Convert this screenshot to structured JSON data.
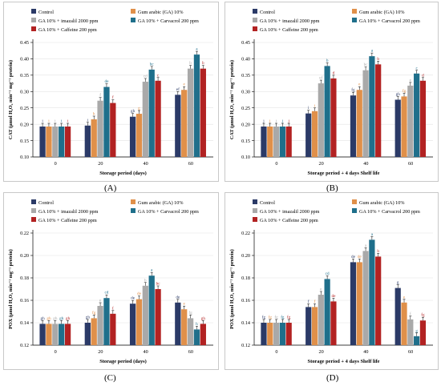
{
  "legend": [
    "Control",
    "Gum arabic (GA) 10%",
    "GA 10% + imazalil 2000 ppm",
    "GA 10% + Carvacrol 200 ppm",
    "GA 10% + Caffeine 200 ppm"
  ],
  "series_colors": [
    "#2b3a67",
    "#e0904a",
    "#a9a9a9",
    "#1f6f8b",
    "#b22222"
  ],
  "panel_labels": [
    "(A)",
    "(B)",
    "(C)",
    "(D)"
  ],
  "chart_data": [
    {
      "type": "bar",
      "panel": "(A)",
      "categories": [
        "0",
        "20",
        "40",
        "60"
      ],
      "xlabel": "Storage period  (days)",
      "ylabel": "CAT (µmol H₂O₂ min⁻¹ mg⁻¹ protein)",
      "ylim": [
        0.1,
        0.45
      ],
      "yticks": [
        "0.10",
        "0.15",
        "0.20",
        "0.25",
        "0.30",
        "0.35",
        "0.40",
        "0.45"
      ],
      "legend_position": "top-left",
      "series": [
        {
          "name": "Control",
          "values": [
            0.193,
            0.196,
            0.223,
            0.29
          ],
          "letters": [
            "i",
            "i",
            "gh",
            "ef"
          ]
        },
        {
          "name": "Gum arabic (GA) 10%",
          "values": [
            0.193,
            0.215,
            0.232,
            0.305
          ],
          "letters": [
            "i",
            "h",
            "g",
            "e"
          ]
        },
        {
          "name": "GA 10% + imazalil 2000 ppm",
          "values": [
            0.193,
            0.272,
            0.33,
            0.37
          ],
          "letters": [
            "i",
            "f",
            "cd",
            "b"
          ]
        },
        {
          "name": "GA 10% + Carvacrol 200 ppm",
          "values": [
            0.193,
            0.314,
            0.367,
            0.413
          ],
          "letters": [
            "i",
            "de",
            "bc",
            "a"
          ]
        },
        {
          "name": "GA 10% + Caffeine 200 ppm",
          "values": [
            0.193,
            0.265,
            0.333,
            0.37
          ],
          "letters": [
            "i",
            "f",
            "c",
            "b"
          ]
        }
      ]
    },
    {
      "type": "bar",
      "panel": "(B)",
      "categories": [
        "0",
        "20",
        "40",
        "60"
      ],
      "xlabel": "Storage period + 4 days Shelf life",
      "ylabel": "CAT (µmol H₂O₂ min⁻¹ mg⁻¹ protein)",
      "ylim": [
        0.1,
        0.45
      ],
      "yticks": [
        "0.10",
        "0.15",
        "0.20",
        "0.25",
        "0.30",
        "0.35",
        "0.40",
        "0.45"
      ],
      "legend_position": "top-left",
      "series": [
        {
          "name": "Control",
          "values": [
            0.193,
            0.233,
            0.288,
            0.275
          ],
          "letters": [
            "j",
            "i",
            "fg",
            "gh"
          ]
        },
        {
          "name": "Gum arabic (GA) 10%",
          "values": [
            0.193,
            0.24,
            0.305,
            0.285
          ],
          "letters": [
            "j",
            "i",
            "e",
            "fg"
          ]
        },
        {
          "name": "GA 10% + imazalil 2000 ppm",
          "values": [
            0.193,
            0.325,
            0.365,
            0.318
          ],
          "letters": [
            "j",
            "ef",
            "bc",
            "e"
          ]
        },
        {
          "name": "GA 10% + Carvacrol 200 ppm",
          "values": [
            0.193,
            0.378,
            0.408,
            0.355
          ],
          "letters": [
            "j",
            "b",
            "a",
            "c"
          ]
        },
        {
          "name": "GA 10% + Caffeine 200 ppm",
          "values": [
            0.193,
            0.34,
            0.383,
            0.333
          ],
          "letters": [
            "j",
            "d",
            "b",
            "d"
          ]
        }
      ]
    },
    {
      "type": "bar",
      "panel": "(C)",
      "categories": [
        "0",
        "20",
        "40",
        "60"
      ],
      "xlabel": "Storage period  (days)",
      "ylabel": "POX (µmol H₂O₂ min⁻¹ mg⁻¹ protein)",
      "ylim": [
        0.12,
        0.22
      ],
      "yticks": [
        "0.12",
        "0.14",
        "0.16",
        "0.18",
        "0.20",
        "0.22"
      ],
      "legend_position": "top-left",
      "series": [
        {
          "name": "Control",
          "values": [
            0.139,
            0.14,
            0.157,
            0.158
          ],
          "letters": [
            "gh",
            "gh",
            "de",
            "de"
          ]
        },
        {
          "name": "Gum arabic (GA) 10%",
          "values": [
            0.139,
            0.144,
            0.161,
            0.152
          ],
          "letters": [
            "gh",
            "fg",
            "de",
            "e"
          ]
        },
        {
          "name": "GA 10% + imazalil 2000 ppm",
          "values": [
            0.139,
            0.155,
            0.173,
            0.144
          ],
          "letters": [
            "gh",
            "e",
            "b",
            "fg"
          ]
        },
        {
          "name": "GA 10% + Carvacrol 200 ppm",
          "values": [
            0.139,
            0.162,
            0.182,
            0.134
          ],
          "letters": [
            "gh",
            "cd",
            "a",
            "h"
          ]
        },
        {
          "name": "GA 10% + Caffeine 200 ppm",
          "values": [
            0.139,
            0.148,
            0.17,
            0.139
          ],
          "letters": [
            "gh",
            "f",
            "bc",
            "gh"
          ]
        }
      ]
    },
    {
      "type": "bar",
      "panel": "(D)",
      "categories": [
        "0",
        "20",
        "40",
        "60"
      ],
      "xlabel": "Storage period + 4 days Shelf life",
      "ylabel": "POX (µmol H₂O₂ min⁻¹ mg⁻¹ protein)",
      "ylim": [
        0.12,
        0.22
      ],
      "yticks": [
        "0.12",
        "0.14",
        "0.16",
        "0.18",
        "0.20",
        "0.22"
      ],
      "legend_position": "top-left",
      "series": [
        {
          "name": "Control",
          "values": [
            0.14,
            0.154,
            0.194,
            0.171
          ],
          "letters": [
            "fg",
            "f",
            "de",
            "g"
          ]
        },
        {
          "name": "Gum arabic (GA) 10%",
          "values": [
            0.14,
            0.154,
            0.194,
            0.158
          ],
          "letters": [
            "fg",
            "f",
            "de",
            "e"
          ]
        },
        {
          "name": "GA 10% + imazalil 2000 ppm",
          "values": [
            0.14,
            0.165,
            0.204,
            0.143
          ],
          "letters": [
            "fg",
            "e",
            "a",
            "f"
          ]
        },
        {
          "name": "GA 10% + Carvacrol 200 ppm",
          "values": [
            0.14,
            0.179,
            0.214,
            0.128
          ],
          "letters": [
            "fg",
            "cd",
            "a",
            "g"
          ]
        },
        {
          "name": "GA 10% + Caffeine 200 ppm",
          "values": [
            0.14,
            0.159,
            0.199,
            0.142
          ],
          "letters": [
            "fg",
            "de",
            "b",
            "fg"
          ]
        }
      ]
    }
  ]
}
